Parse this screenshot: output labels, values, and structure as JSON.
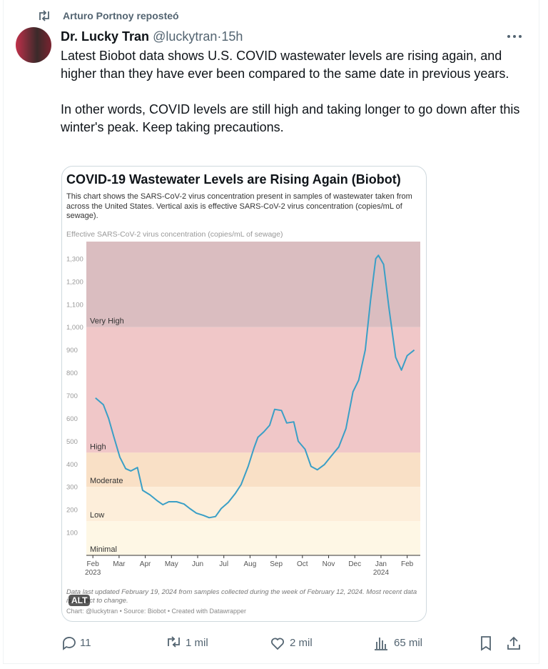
{
  "repost": {
    "text": "Arturo Portnoy reposteó"
  },
  "author": {
    "name": "Dr. Lucky Tran",
    "handle": "@luckytran",
    "separator": "·",
    "time": "15h"
  },
  "body": [
    "Latest Biobot data shows U.S. COVID wastewater levels are rising again, and higher than they have ever been compared to the same date in previous years.",
    "In other words, COVID levels are still high and taking longer to go down after this winter's peak. Keep taking precautions."
  ],
  "image_badge": "ALT",
  "chart_data": {
    "type": "line",
    "title": "COVID-19 Wastewater Levels are Rising Again (Biobot)",
    "subtitle": "This chart shows the SARS-CoV-2 virus concentration present in samples of wastewater taken from across the United States. Vertical axis is effective SARS-CoV-2 virus concentration (copies/mL of sewage).",
    "y_label": "Effective SARS-CoV-2 virus concentration (copies/mL of sewage)",
    "note": "Data last updated February 19, 2024 from samples collected during the week of February 12, 2024. Most recent data is subject to change.",
    "credit": "Chart: @luckytran • Source: Biobot • Created with Datawrapper",
    "xlim": [
      -0.25,
      12.5
    ],
    "xticks": [
      {
        "value": 0,
        "label": "Feb"
      },
      {
        "value": 1,
        "label": "Mar"
      },
      {
        "value": 2,
        "label": "Apr"
      },
      {
        "value": 3,
        "label": "May"
      },
      {
        "value": 4,
        "label": "Jun"
      },
      {
        "value": 5,
        "label": "Jul"
      },
      {
        "value": 6,
        "label": "Aug"
      },
      {
        "value": 7,
        "label": "Sep"
      },
      {
        "value": 8,
        "label": "Oct"
      },
      {
        "value": 9,
        "label": "Nov"
      },
      {
        "value": 10,
        "label": "Dec"
      },
      {
        "value": 11,
        "label": "Jan"
      },
      {
        "value": 12,
        "label": "Feb"
      }
    ],
    "xtick_years": [
      {
        "value": 0,
        "label": "2023"
      },
      {
        "value": 11,
        "label": "2024"
      }
    ],
    "ylim": [
      0,
      1375
    ],
    "yticks": [
      100,
      200,
      300,
      400,
      500,
      600,
      700,
      800,
      900,
      {
        "value": 1000,
        "label": "1,000"
      },
      {
        "value": 1100,
        "label": "1,100"
      },
      {
        "value": 1200,
        "label": "1,200"
      },
      {
        "value": 1300,
        "label": "1,300"
      }
    ],
    "grid": false,
    "bands": [
      {
        "name": "Very High",
        "from": 1000,
        "to": 1375,
        "color": "#dabdc0"
      },
      {
        "name": "High",
        "from": 450,
        "to": 1000,
        "color": "#f0c7c8"
      },
      {
        "name": "Moderate",
        "from": 300,
        "to": 450,
        "color": "#f9e0c6"
      },
      {
        "name": "Low",
        "from": 150,
        "to": 300,
        "color": "#fdeeda"
      },
      {
        "name": "Minimal",
        "from": 0,
        "to": 150,
        "color": "#fef7e5"
      }
    ],
    "color": "#3a9fc6",
    "x": [
      0.1,
      0.4,
      0.6,
      0.8,
      1.03,
      1.25,
      1.45,
      1.7,
      1.9,
      2.18,
      2.45,
      2.67,
      2.9,
      3.2,
      3.48,
      3.7,
      3.95,
      4.22,
      4.44,
      4.68,
      4.9,
      5.17,
      5.44,
      5.66,
      5.93,
      6.15,
      6.3,
      6.53,
      6.75,
      6.94,
      7.2,
      7.4,
      7.67,
      7.84,
      8.1,
      8.33,
      8.57,
      8.84,
      9.1,
      9.39,
      9.66,
      9.93,
      10.15,
      10.4,
      10.6,
      10.8,
      10.9,
      11.1,
      11.3,
      11.56,
      11.78,
      12.0,
      12.27
    ],
    "values": [
      690,
      660,
      600,
      520,
      430,
      380,
      370,
      385,
      285,
      265,
      240,
      222,
      235,
      235,
      225,
      205,
      185,
      175,
      165,
      170,
      205,
      232,
      272,
      310,
      390,
      470,
      517,
      542,
      570,
      640,
      635,
      580,
      585,
      500,
      465,
      390,
      375,
      398,
      435,
      475,
      555,
      717,
      768,
      900,
      1118,
      1300,
      1315,
      1275,
      1087,
      868,
      812,
      875,
      900
    ]
  },
  "actions": {
    "replies": "11",
    "reposts": "1 mil",
    "likes": "2 mil",
    "views": "65 mil"
  }
}
